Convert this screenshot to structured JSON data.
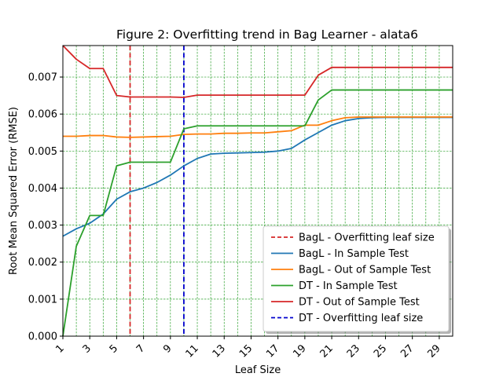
{
  "chart_data": {
    "type": "line",
    "title": "Figure 2: Overfitting trend in Bag Learner - alata6",
    "xlabel": "Leaf Size",
    "ylabel": "Root Mean Squared Error (RMSE)",
    "xlim": [
      1,
      30
    ],
    "ylim": [
      0,
      0.00785
    ],
    "x_ticks": [
      1,
      3,
      5,
      7,
      9,
      11,
      13,
      15,
      17,
      19,
      21,
      23,
      25,
      27,
      29
    ],
    "y_ticks": [
      0,
      0.001,
      0.002,
      0.003,
      0.004,
      0.005,
      0.006,
      0.007
    ],
    "y_tick_labels": [
      "0.000",
      "0.001",
      "0.002",
      "0.003",
      "0.004",
      "0.005",
      "0.006",
      "0.007"
    ],
    "x_tick_rotation": 45,
    "grid": true,
    "grid_color": "#2ca02c",
    "legend_position": "lower right",
    "x": [
      1,
      2,
      3,
      4,
      5,
      6,
      7,
      8,
      9,
      10,
      11,
      12,
      13,
      14,
      15,
      16,
      17,
      18,
      19,
      20,
      21,
      22,
      23,
      24,
      25,
      26,
      27,
      28,
      29,
      30
    ],
    "vlines": [
      {
        "name": "BagL - Overfitting leaf size",
        "x": 6,
        "color": "#d62728",
        "dashed": true
      },
      {
        "name": "DT - Overfitting leaf size",
        "x": 10,
        "color": "#0000cc",
        "dashed": true
      }
    ],
    "series": [
      {
        "name": "BagL - In Sample Test",
        "color": "#1f77b4",
        "values": [
          0.0027,
          0.0029,
          0.00305,
          0.0033,
          0.0037,
          0.0039,
          0.004,
          0.00415,
          0.00435,
          0.0046,
          0.0048,
          0.00492,
          0.00494,
          0.00495,
          0.00496,
          0.00497,
          0.005,
          0.00507,
          0.0053,
          0.0055,
          0.0057,
          0.00582,
          0.00588,
          0.0059,
          0.00591,
          0.00591,
          0.00591,
          0.00591,
          0.00591,
          0.00591
        ]
      },
      {
        "name": "BagL - Out of Sample Test",
        "color": "#ff7f0e",
        "values": [
          0.0054,
          0.0054,
          0.00542,
          0.00542,
          0.00538,
          0.00537,
          0.00538,
          0.00539,
          0.0054,
          0.00545,
          0.00546,
          0.00546,
          0.00548,
          0.00548,
          0.00549,
          0.00549,
          0.00552,
          0.00555,
          0.0057,
          0.0057,
          0.00582,
          0.0059,
          0.00592,
          0.00592,
          0.00592,
          0.00592,
          0.00592,
          0.00592,
          0.00592,
          0.00592
        ]
      },
      {
        "name": "DT - In Sample Test",
        "color": "#2ca02c",
        "values": [
          0.0,
          0.00243,
          0.00326,
          0.00326,
          0.0046,
          0.0047,
          0.0047,
          0.0047,
          0.0047,
          0.0056,
          0.00568,
          0.00568,
          0.00568,
          0.00568,
          0.00568,
          0.00568,
          0.00568,
          0.00568,
          0.00568,
          0.00638,
          0.00665,
          0.00665,
          0.00665,
          0.00665,
          0.00665,
          0.00665,
          0.00665,
          0.00665,
          0.00665,
          0.00665
        ]
      },
      {
        "name": "DT - Out of Sample Test",
        "color": "#d62728",
        "values": [
          0.00785,
          0.00748,
          0.00723,
          0.00723,
          0.0065,
          0.00646,
          0.00646,
          0.00646,
          0.00646,
          0.00645,
          0.00651,
          0.00651,
          0.00651,
          0.00651,
          0.00651,
          0.00651,
          0.00651,
          0.00651,
          0.00651,
          0.00705,
          0.00726,
          0.00726,
          0.00726,
          0.00726,
          0.00726,
          0.00726,
          0.00726,
          0.00726,
          0.00726,
          0.00726
        ]
      }
    ],
    "legend": [
      {
        "label": "BagL - Overfitting leaf size",
        "color": "#d62728",
        "dashed": true
      },
      {
        "label": "BagL - In Sample Test",
        "color": "#1f77b4",
        "dashed": false
      },
      {
        "label": "BagL - Out of Sample Test",
        "color": "#ff7f0e",
        "dashed": false
      },
      {
        "label": "DT - In Sample Test",
        "color": "#2ca02c",
        "dashed": false
      },
      {
        "label": "DT - Out of Sample Test",
        "color": "#d62728",
        "dashed": false
      },
      {
        "label": "DT - Overfitting leaf size",
        "color": "#0000cc",
        "dashed": true
      }
    ]
  }
}
